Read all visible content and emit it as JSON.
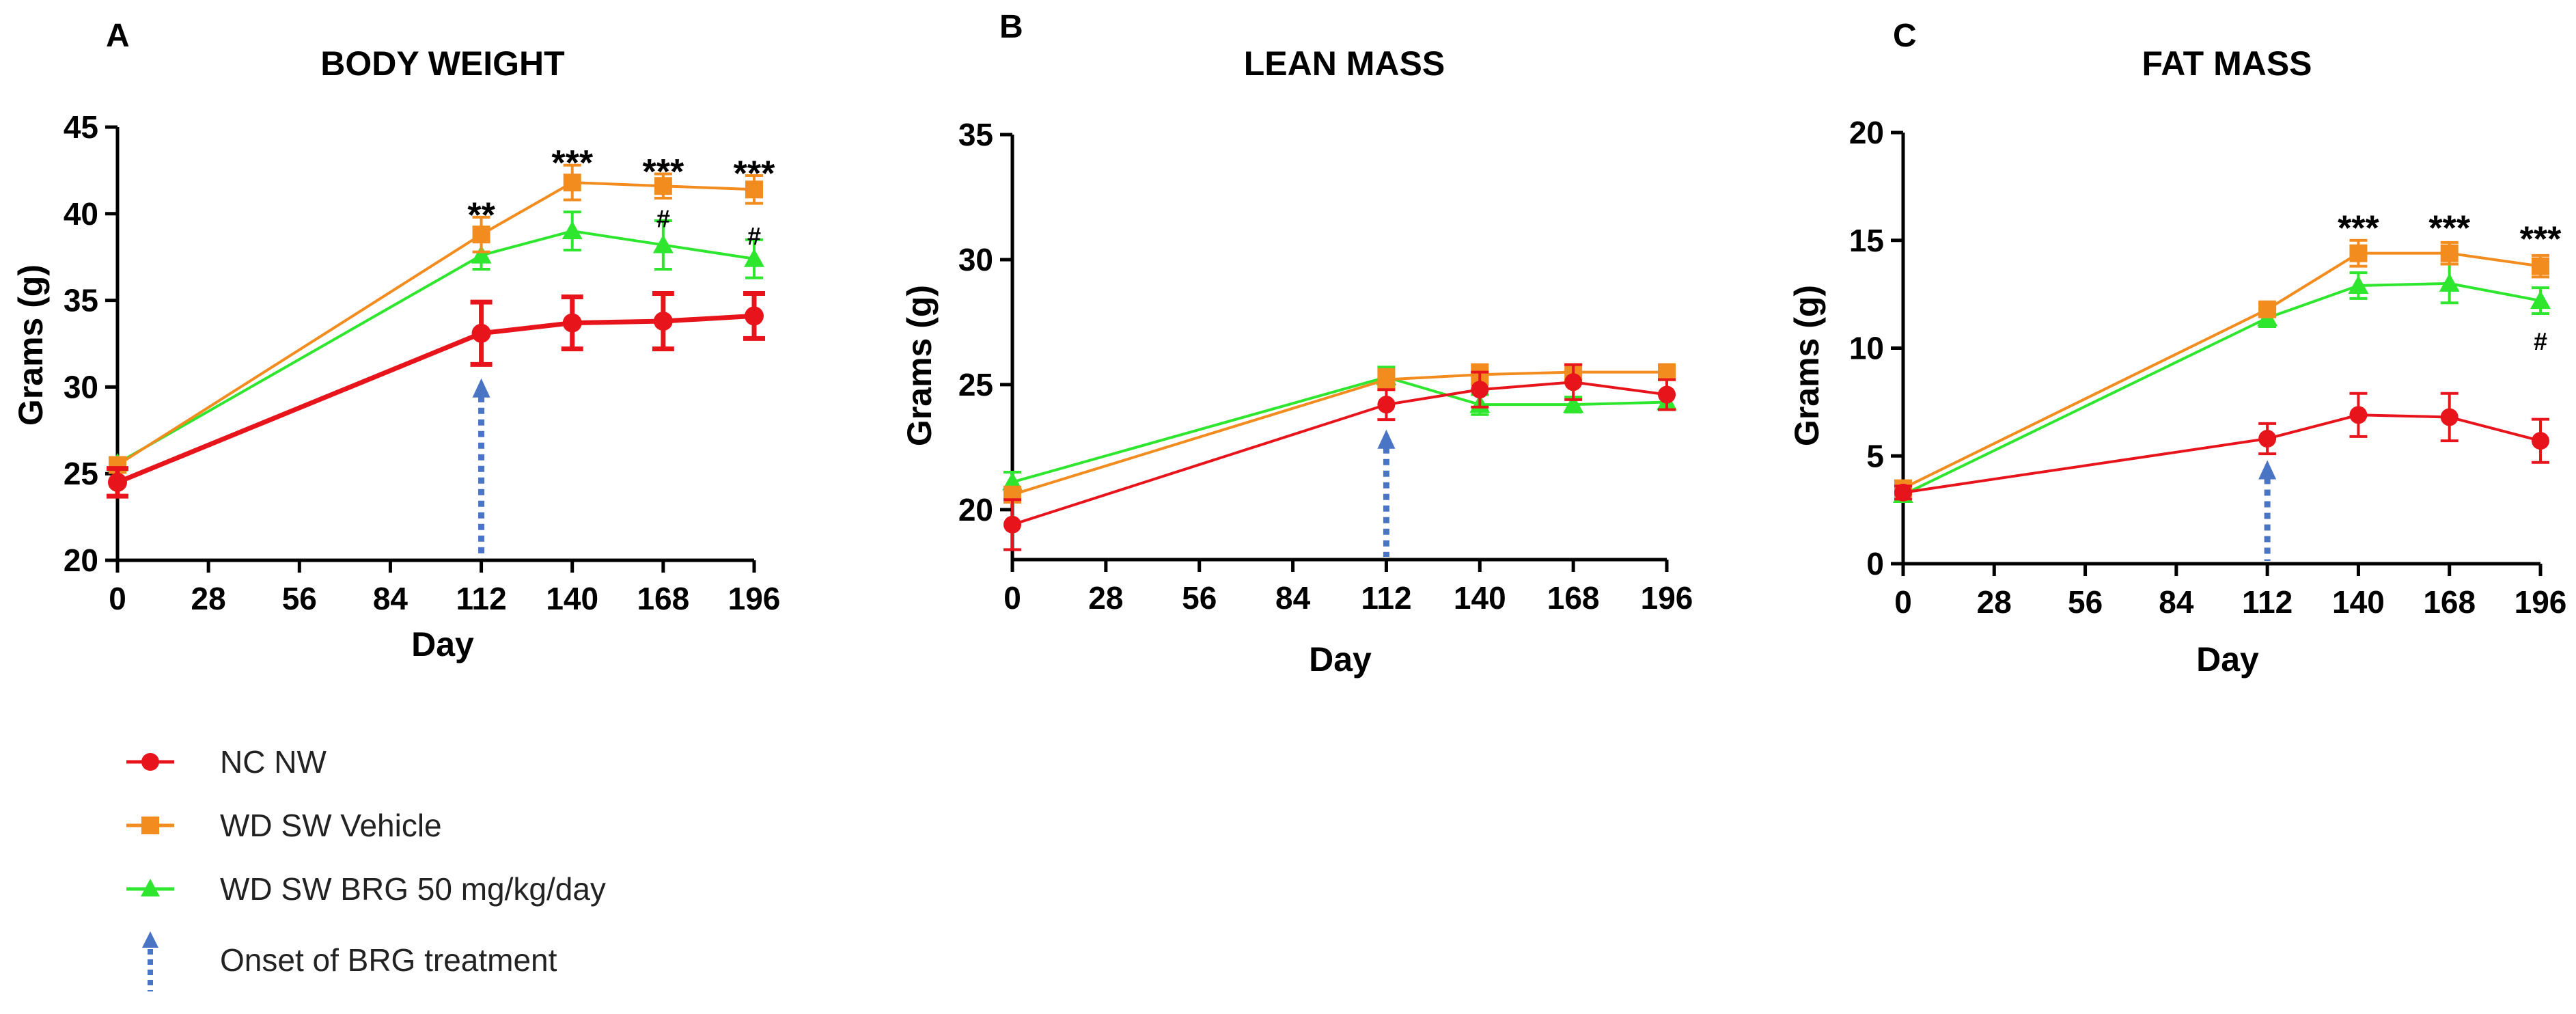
{
  "colors": {
    "nc_nw": "#e8141b",
    "wd_sw_vehicle": "#f28c1e",
    "wd_sw_brg": "#2ee62e",
    "onset_arrow": "#4a74c4",
    "axis": "#000000"
  },
  "legend": {
    "items": [
      {
        "label": "NC NW",
        "color": "#e8141b",
        "marker": "circle",
        "icon": "legend-circle-icon"
      },
      {
        "label": "WD SW Vehicle",
        "color": "#f28c1e",
        "marker": "square",
        "icon": "legend-square-icon"
      },
      {
        "label": "WD SW BRG 50 mg/kg/day",
        "color": "#2ee62e",
        "marker": "triangle",
        "icon": "legend-triangle-icon"
      },
      {
        "label": "Onset of BRG treatment",
        "color": "#4a74c4",
        "marker": "dotted-arrow",
        "icon": "legend-arrow-icon"
      }
    ]
  },
  "chart_data": [
    {
      "panel": "A",
      "type": "line",
      "title": "BODY WEIGHT",
      "xlabel": "Day",
      "ylabel": "Grams (g)",
      "xlim": [
        0,
        196
      ],
      "ylim": [
        20,
        45
      ],
      "xticks": [
        0,
        28,
        56,
        84,
        112,
        140,
        168,
        196
      ],
      "yticks": [
        20,
        25,
        30,
        35,
        40,
        45
      ],
      "onset_day": 112,
      "onset_arrow_top": 30.5,
      "series": [
        {
          "name": "NC NW",
          "marker": "circle",
          "thick": true,
          "x": [
            0,
            112,
            140,
            168,
            196
          ],
          "y": [
            24.5,
            33.1,
            33.7,
            33.8,
            34.1
          ],
          "err": [
            0.8,
            1.8,
            1.5,
            1.6,
            1.3
          ]
        },
        {
          "name": "WD SW Vehicle",
          "marker": "square",
          "x": [
            0,
            112,
            140,
            168,
            196
          ],
          "y": [
            25.5,
            38.8,
            41.8,
            41.6,
            41.4
          ],
          "err": [
            0.3,
            1.0,
            1.0,
            0.7,
            0.8
          ]
        },
        {
          "name": "WD SW BRG 50 mg/kg/day",
          "marker": "triangle",
          "x": [
            0,
            112,
            140,
            168,
            196
          ],
          "y": [
            25.6,
            37.6,
            39.0,
            38.2,
            37.4
          ],
          "err": [
            0.3,
            0.8,
            1.1,
            1.4,
            1.1
          ]
        }
      ],
      "annotations": [
        {
          "x": 112,
          "y": 40.1,
          "text": "**",
          "kind": "star"
        },
        {
          "x": 140,
          "y": 43.1,
          "text": "***",
          "kind": "star"
        },
        {
          "x": 168,
          "y": 42.6,
          "text": "***",
          "kind": "star"
        },
        {
          "x": 196,
          "y": 42.5,
          "text": "***",
          "kind": "star"
        },
        {
          "x": 168,
          "y": 39.7,
          "text": "#",
          "kind": "hash"
        },
        {
          "x": 196,
          "y": 38.7,
          "text": "#",
          "kind": "hash"
        }
      ]
    },
    {
      "panel": "B",
      "type": "line",
      "title": "LEAN MASS",
      "xlabel": "Day",
      "ylabel": "Grams (g)",
      "xlim": [
        0,
        196
      ],
      "ylim": [
        18,
        35
      ],
      "xticks": [
        0,
        28,
        56,
        84,
        112,
        140,
        168,
        196
      ],
      "yticks": [
        20,
        25,
        30,
        35
      ],
      "onset_day": 112,
      "onset_arrow_top": 23.2,
      "series": [
        {
          "name": "NC NW",
          "marker": "circle",
          "x": [
            0,
            112,
            140,
            168,
            196
          ],
          "y": [
            19.4,
            24.2,
            24.8,
            25.1,
            24.6
          ],
          "err": [
            1.0,
            0.6,
            0.7,
            0.7,
            0.6
          ]
        },
        {
          "name": "WD SW Vehicle",
          "marker": "square",
          "x": [
            0,
            112,
            140,
            168,
            196
          ],
          "y": [
            20.6,
            25.2,
            25.4,
            25.5,
            25.5
          ],
          "err": [
            0.3,
            0.4,
            0.4,
            0.3,
            0.3
          ]
        },
        {
          "name": "WD SW BRG 50 mg/kg/day",
          "marker": "triangle",
          "x": [
            0,
            112,
            140,
            168,
            196
          ],
          "y": [
            21.1,
            25.3,
            24.2,
            24.2,
            24.3
          ],
          "err": [
            0.4,
            0.4,
            0.4,
            0.3,
            0.3
          ]
        }
      ],
      "annotations": []
    },
    {
      "panel": "C",
      "type": "line",
      "title": "FAT MASS",
      "xlabel": "Day",
      "ylabel": "Grams (g)",
      "xlim": [
        0,
        196
      ],
      "ylim": [
        0,
        20
      ],
      "xticks": [
        0,
        28,
        56,
        84,
        112,
        140,
        168,
        196
      ],
      "yticks": [
        0,
        5,
        10,
        15,
        20
      ],
      "onset_day": 112,
      "onset_arrow_top": 4.8,
      "series": [
        {
          "name": "NC NW",
          "marker": "circle",
          "x": [
            0,
            112,
            140,
            168,
            196
          ],
          "y": [
            3.3,
            5.8,
            6.9,
            6.8,
            5.7
          ],
          "err": [
            0.3,
            0.7,
            1.0,
            1.1,
            1.0
          ]
        },
        {
          "name": "WD SW Vehicle",
          "marker": "square",
          "x": [
            0,
            112,
            140,
            168,
            196
          ],
          "y": [
            3.5,
            11.8,
            14.4,
            14.4,
            13.8
          ],
          "err": [
            0.2,
            0.3,
            0.6,
            0.5,
            0.5
          ]
        },
        {
          "name": "WD SW BRG 50 mg/kg/day",
          "marker": "triangle",
          "x": [
            0,
            112,
            140,
            168,
            196
          ],
          "y": [
            3.2,
            11.4,
            12.9,
            13.0,
            12.2
          ],
          "err": [
            0.2,
            0.4,
            0.6,
            0.9,
            0.6
          ]
        }
      ],
      "annotations": [
        {
          "x": 140,
          "y": 15.7,
          "text": "***",
          "kind": "star"
        },
        {
          "x": 168,
          "y": 15.7,
          "text": "***",
          "kind": "star"
        },
        {
          "x": 196,
          "y": 15.2,
          "text": "***",
          "kind": "star"
        },
        {
          "x": 196,
          "y": 10.3,
          "text": "#",
          "kind": "hash"
        }
      ]
    }
  ]
}
